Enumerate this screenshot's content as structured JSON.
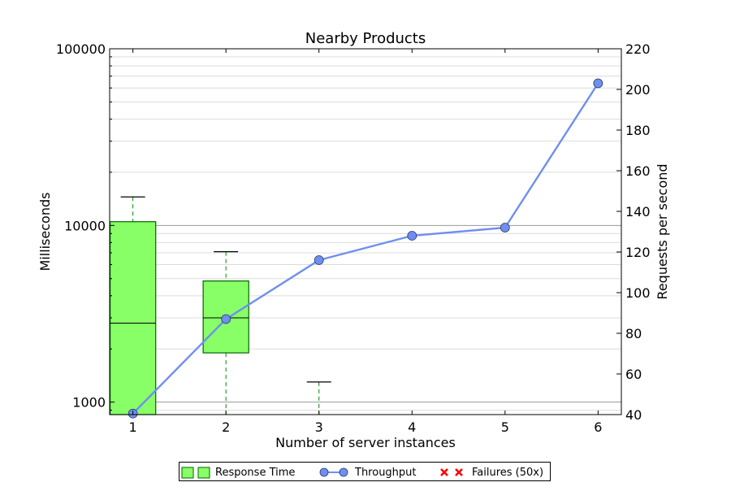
{
  "chart_data": {
    "type": "box+line",
    "title": "Nearby Products",
    "xlabel": "Number of server instances",
    "ylabel_left": "Milliseconds",
    "ylabel_right": "Requests per second",
    "x_ticks": [
      "1",
      "2",
      "3",
      "4",
      "5",
      "6"
    ],
    "xlim": [
      0.75,
      6.25
    ],
    "left_axis": {
      "scale": "log",
      "ylim": [
        850,
        100000
      ],
      "major_ticks": [
        1000,
        10000,
        100000
      ],
      "major_tick_labels": [
        "1000",
        "10000",
        "100000"
      ]
    },
    "right_axis": {
      "scale": "linear",
      "ylim": [
        40,
        220
      ],
      "ticks": [
        40,
        60,
        80,
        100,
        120,
        140,
        160,
        180,
        200,
        220
      ],
      "tick_labels": [
        "40",
        "60",
        "80",
        "100",
        "120",
        "140",
        "160",
        "180",
        "200",
        "220"
      ]
    },
    "grid": "horizontal",
    "legend_placement": "bottom-center",
    "series": [
      {
        "name": "Response Time",
        "kind": "box",
        "color": "#88ff66",
        "edge_color": "#006600",
        "whisker_color": "#008800",
        "boxes": [
          {
            "x": 1,
            "whislo": 850,
            "q1": 850,
            "med": 2800,
            "q3": 10500,
            "whishi": 14500
          },
          {
            "x": 2,
            "whislo": 850,
            "q1": 1900,
            "med": 3000,
            "q3": 4850,
            "whishi": 7100
          },
          {
            "x": 3,
            "whislo": 850,
            "q1": null,
            "med": null,
            "q3": null,
            "whishi": 1300
          }
        ]
      },
      {
        "name": "Throughput",
        "kind": "line",
        "color": "#6f8ff0",
        "x": [
          1,
          2,
          3,
          4,
          5,
          6
        ],
        "y": [
          40.5,
          87,
          116,
          128,
          132,
          203
        ]
      },
      {
        "name": "Failures (50x)",
        "kind": "scatter",
        "color": "#ff0000",
        "x": [],
        "y": []
      }
    ]
  }
}
